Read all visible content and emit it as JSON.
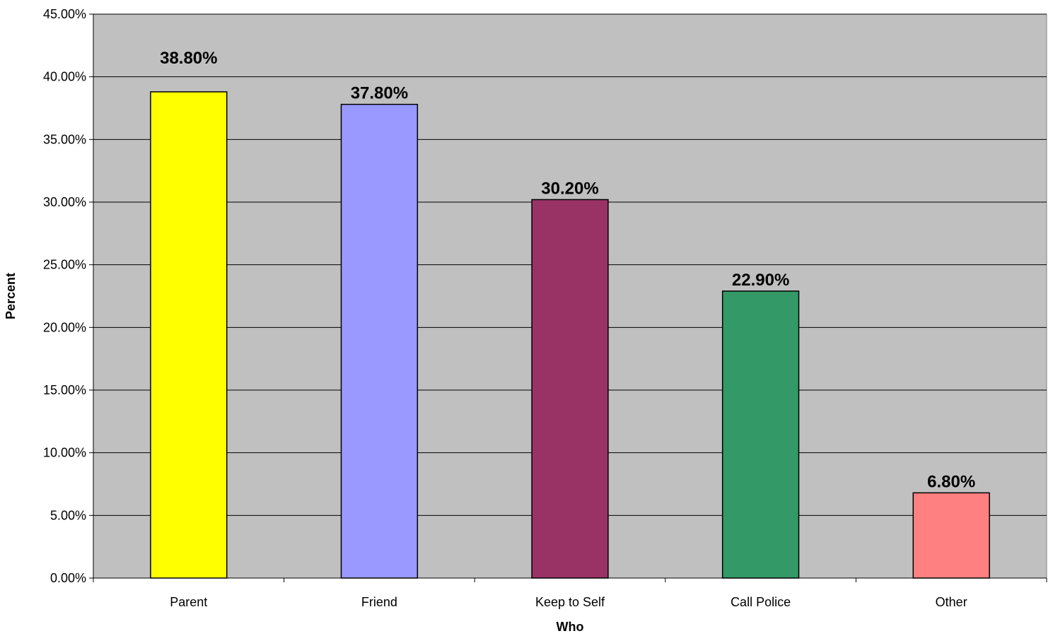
{
  "chart_data": {
    "type": "bar",
    "title": "",
    "xlabel": "Who",
    "ylabel": "Percent",
    "categories": [
      "Parent",
      "Friend",
      "Keep to Self",
      "Call Police",
      "Other"
    ],
    "values": [
      38.8,
      37.8,
      30.2,
      22.9,
      6.8
    ],
    "data_labels": [
      "38.80%",
      "37.80%",
      "30.20%",
      "22.90%",
      "6.80%"
    ],
    "bar_colors": [
      "#FFFF00",
      "#9999FF",
      "#993366",
      "#339966",
      "#FF8080"
    ],
    "ylim": [
      0,
      45
    ],
    "yticks": [
      0,
      5,
      10,
      15,
      20,
      25,
      30,
      35,
      40,
      45
    ],
    "ytick_labels": [
      "0.00%",
      "5.00%",
      "10.00%",
      "15.00%",
      "20.00%",
      "25.00%",
      "30.00%",
      "35.00%",
      "40.00%",
      "45.00%"
    ],
    "grid": true,
    "plot_background": "#C0C0C0",
    "legend": "none"
  }
}
